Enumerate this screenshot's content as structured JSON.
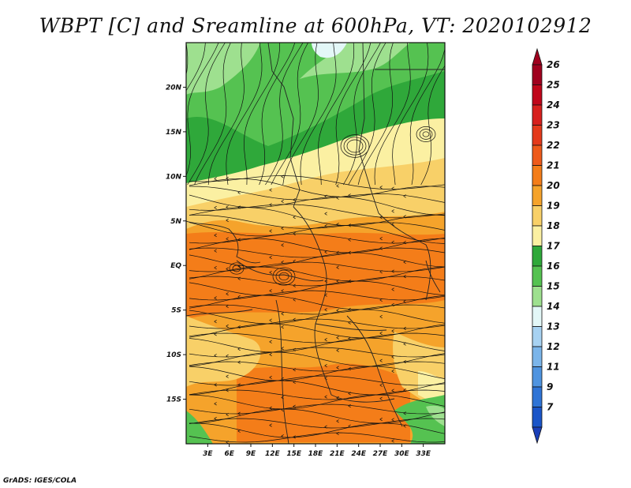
{
  "title": "WBPT [C] and Sreamline at 600hPa, VT: 2020102912",
  "credit": "GrADS: IGES/COLA",
  "map": {
    "lon_range": [
      0,
      36
    ],
    "lat_range": [
      -20,
      25
    ],
    "lat_ticks": [
      {
        "value": 20,
        "label": "20N"
      },
      {
        "value": 15,
        "label": "15N"
      },
      {
        "value": 10,
        "label": "10N"
      },
      {
        "value": 5,
        "label": "5N"
      },
      {
        "value": 0,
        "label": "EQ"
      },
      {
        "value": -5,
        "label": "5S"
      },
      {
        "value": -10,
        "label": "10S"
      },
      {
        "value": -15,
        "label": "15S"
      }
    ],
    "lon_ticks": [
      {
        "value": 3,
        "label": "3E"
      },
      {
        "value": 6,
        "label": "6E"
      },
      {
        "value": 9,
        "label": "9E"
      },
      {
        "value": 12,
        "label": "12E"
      },
      {
        "value": 15,
        "label": "15E"
      },
      {
        "value": 18,
        "label": "18E"
      },
      {
        "value": 21,
        "label": "21E"
      },
      {
        "value": 24,
        "label": "24E"
      },
      {
        "value": 27,
        "label": "27E"
      },
      {
        "value": 30,
        "label": "30E"
      },
      {
        "value": 33,
        "label": "33E"
      }
    ]
  },
  "colorbar": {
    "levels": [
      {
        "label": "26",
        "color": "#a0001e"
      },
      {
        "label": "25",
        "color": "#c0061a"
      },
      {
        "label": "24",
        "color": "#d7201d"
      },
      {
        "label": "23",
        "color": "#e43a1b"
      },
      {
        "label": "22",
        "color": "#ee5a1a"
      },
      {
        "label": "21",
        "color": "#f47d19"
      },
      {
        "label": "20",
        "color": "#f5a32b"
      },
      {
        "label": "19",
        "color": "#f8d068"
      },
      {
        "label": "18",
        "color": "#fbf0a2"
      },
      {
        "label": "17",
        "color": "#2fa83a"
      },
      {
        "label": "16",
        "color": "#55c251"
      },
      {
        "label": "15",
        "color": "#9ee08f"
      },
      {
        "label": "14",
        "color": "#e3f7f7"
      },
      {
        "label": "13",
        "color": "#a7d2f2"
      },
      {
        "label": "12",
        "color": "#7bb5ea"
      },
      {
        "label": "11",
        "color": "#4f94e0"
      },
      {
        "label": "9",
        "color": "#2f74d6"
      },
      {
        "label": "7",
        "color": "#1a55c8"
      }
    ],
    "bottom_arrow_color": "#1a3fb8"
  }
}
